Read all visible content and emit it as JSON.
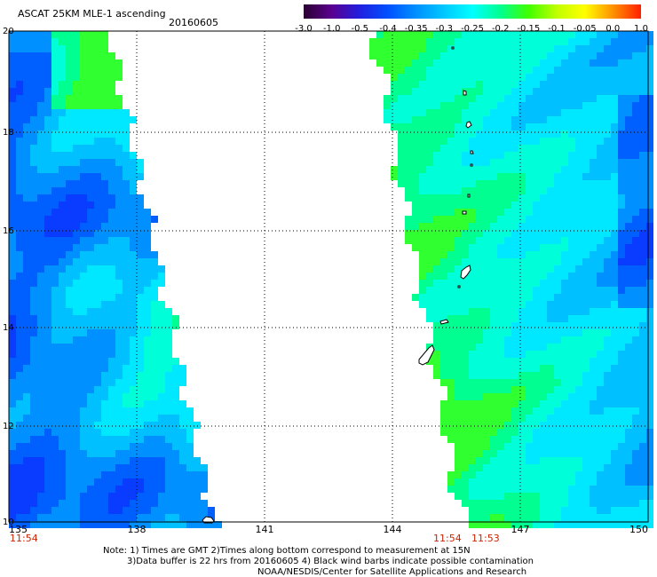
{
  "header": {
    "title": "ASCAT 25KM MLE-1 ascending",
    "date": "20160605"
  },
  "colorbar": {
    "labels": [
      "-3.0",
      "-1.0",
      "-0.5",
      "-0.4",
      "-0.35",
      "-0.3",
      "-0.25",
      "-0.2",
      "-0.15",
      "-0.1",
      "-0.05",
      "0.0",
      "1.0"
    ],
    "colors": [
      "#2a0030",
      "#5a0090",
      "#2020e0",
      "#0050ff",
      "#0090ff",
      "#00c8ff",
      "#00ffff",
      "#00ff90",
      "#40ff00",
      "#c0ff00",
      "#ffff00",
      "#ff9000",
      "#ff2000"
    ]
  },
  "map": {
    "lon_ticks": [
      "135",
      "138",
      "141",
      "144",
      "147",
      "150"
    ],
    "lat_ticks": [
      "20",
      "18",
      "16",
      "14",
      "12",
      "10"
    ],
    "lon_range": [
      135,
      150
    ],
    "lat_range": [
      10,
      20
    ],
    "time_labels": {
      "left": "11:54",
      "mid_a": "11:54",
      "mid_b": "11:53"
    },
    "time_color": "#cc2200",
    "gridlines": "dotted"
  },
  "footer": {
    "line1": "Note: 1) Times are GMT 2)Times along bottom correspond to measurement at 15N",
    "line2": "3)Data buffer is 22 hrs from 20160605 4) Black wind barbs indicate possible contamination",
    "line3": "NOAA/NESDIS/Center for Satellite Applications and Research"
  }
}
